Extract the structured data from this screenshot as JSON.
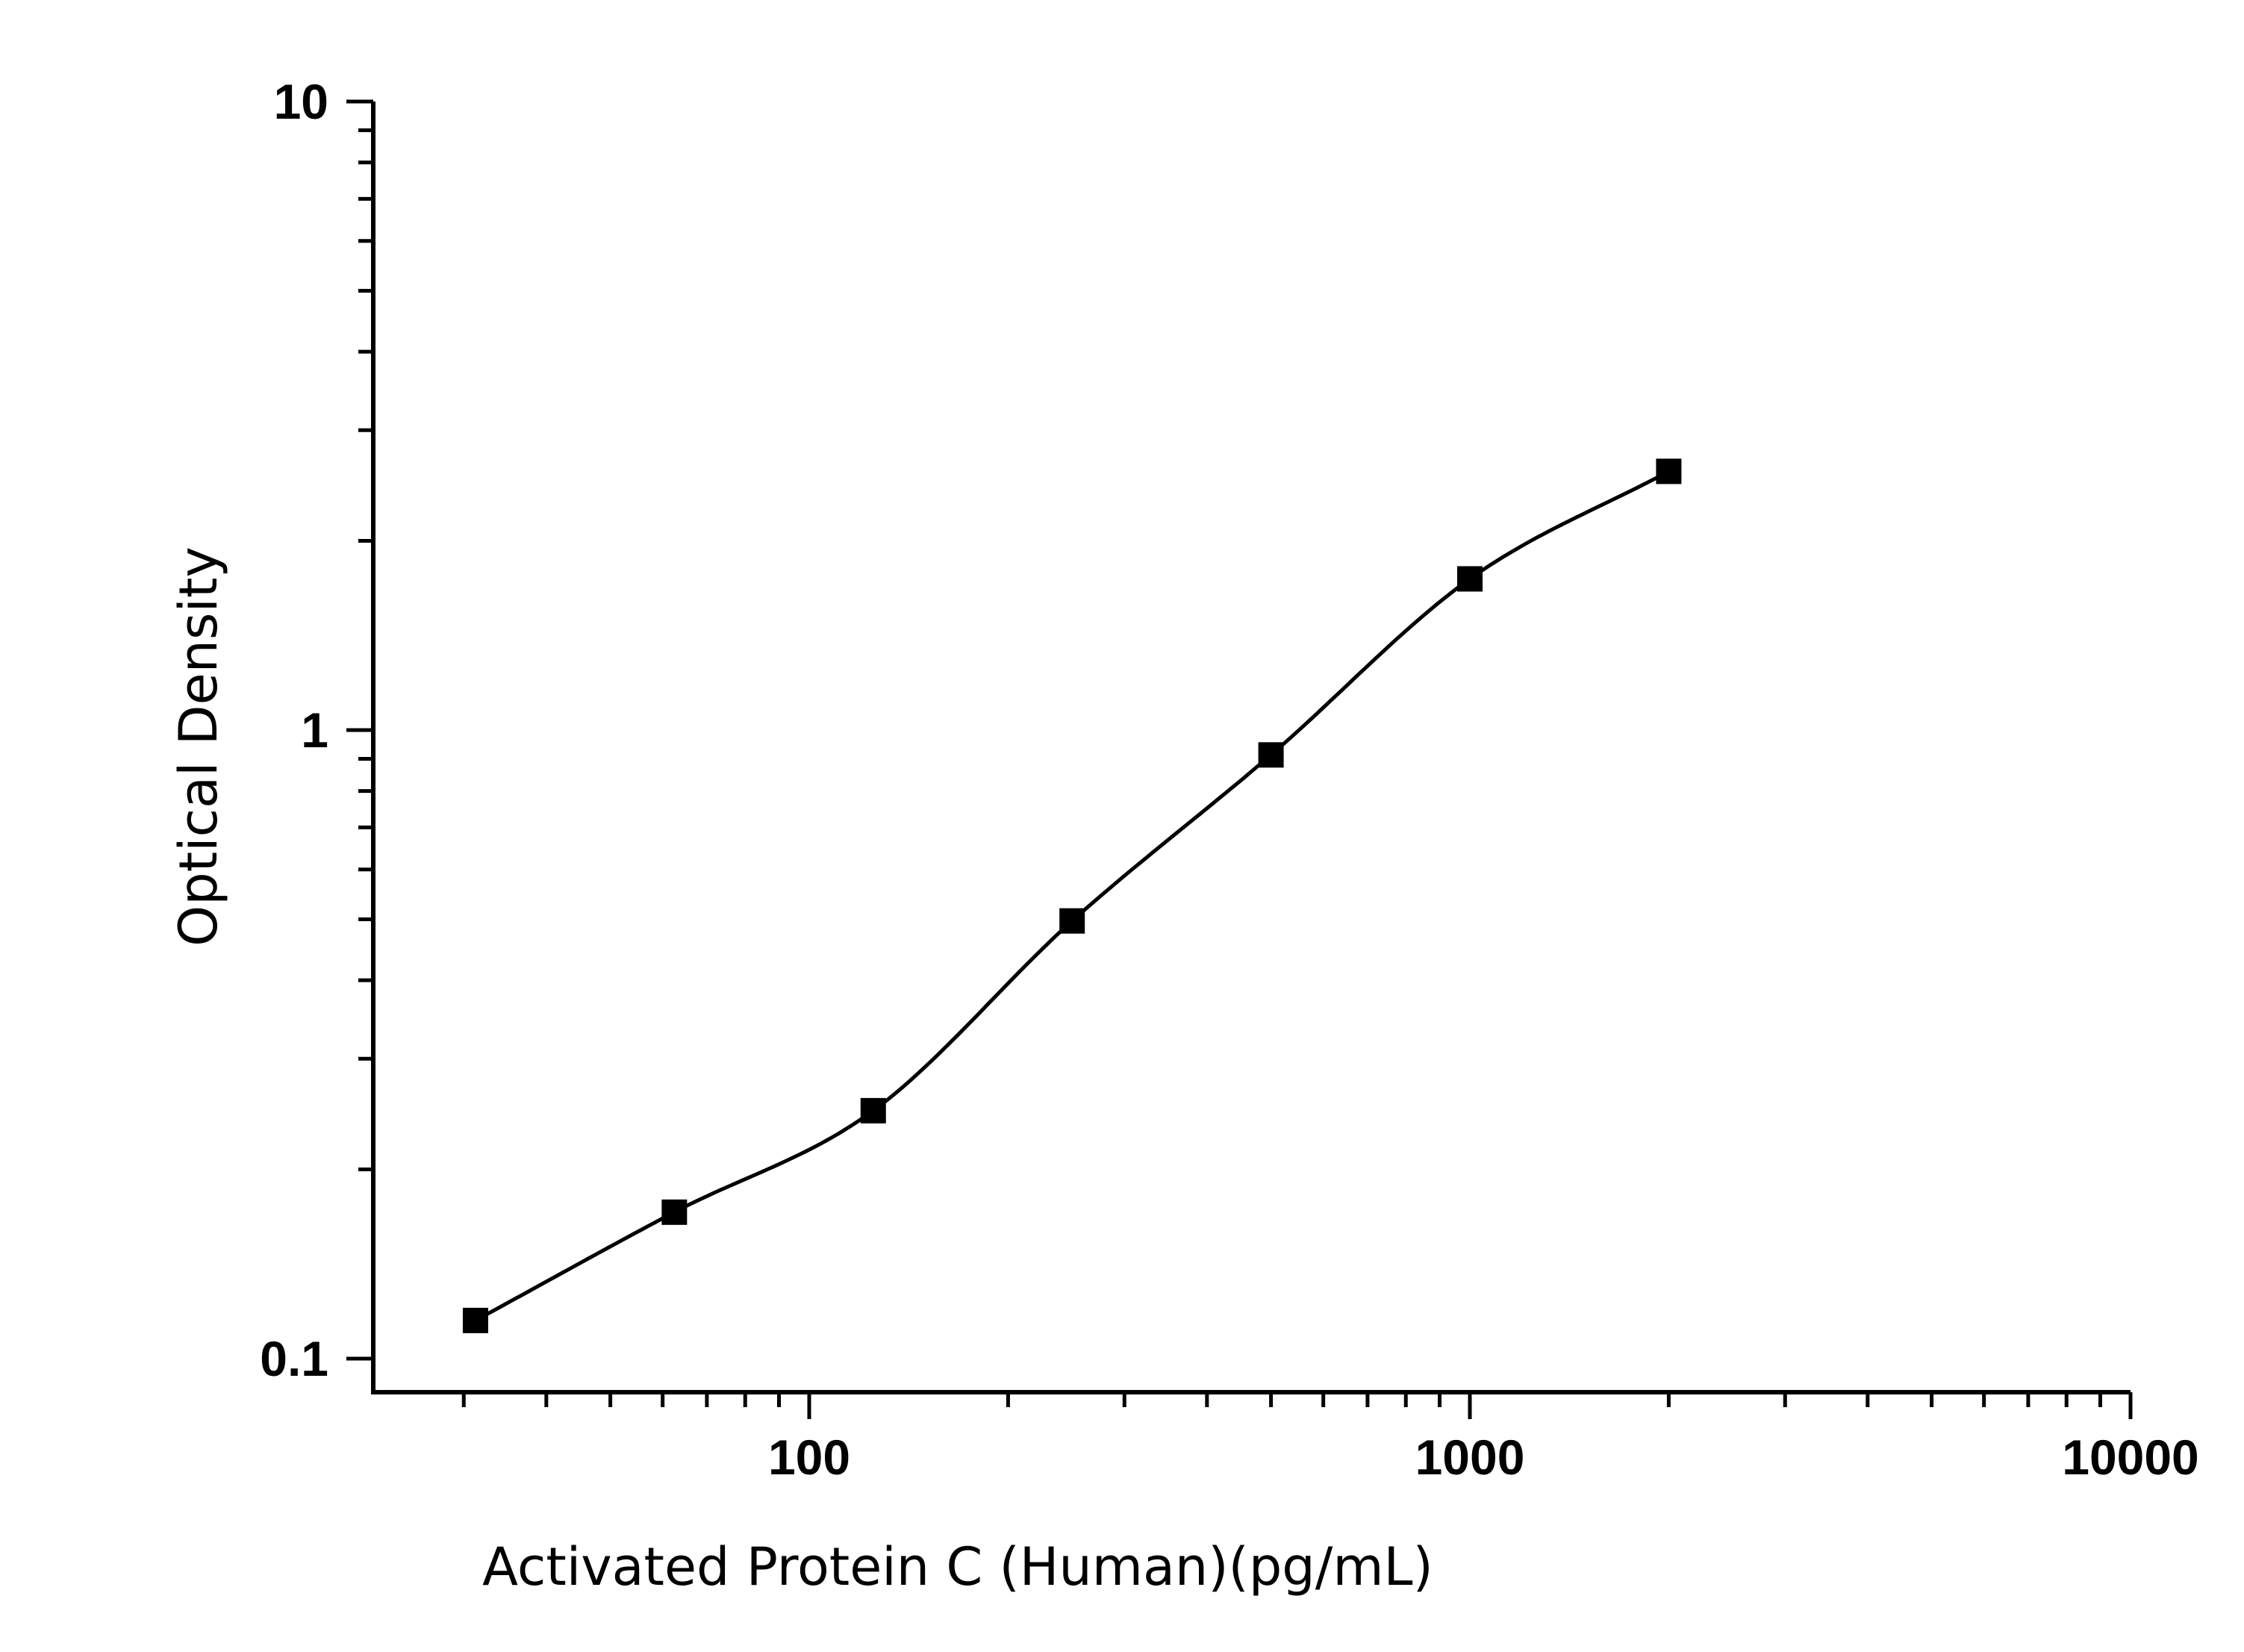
{
  "chart_data": {
    "type": "scatter",
    "xlabel": "Activated Protein C (Human)(pg/mL)",
    "ylabel": "Optical Density",
    "x_scale": "log",
    "y_scale": "log",
    "xlim": [
      20,
      10000
    ],
    "ylim": [
      0.09,
      10
    ],
    "x_ticks": [
      {
        "value": 100,
        "label": "100"
      },
      {
        "value": 1000,
        "label": "1000"
      },
      {
        "value": 10000,
        "label": "10000"
      }
    ],
    "y_ticks": [
      {
        "value": 0.1,
        "label": "0.1"
      },
      {
        "value": 1,
        "label": "1"
      },
      {
        "value": 10,
        "label": "10"
      }
    ],
    "grid": false,
    "marker": "square",
    "fit_curve": "four-parameter logistic",
    "points": [
      {
        "x": 31.25,
        "y": 0.115
      },
      {
        "x": 62.5,
        "y": 0.171
      },
      {
        "x": 125,
        "y": 0.248
      },
      {
        "x": 250,
        "y": 0.497
      },
      {
        "x": 500,
        "y": 0.913
      },
      {
        "x": 1000,
        "y": 1.74
      },
      {
        "x": 2000,
        "y": 2.58
      }
    ],
    "colors": {
      "marker": "#000000",
      "curve": "#000000",
      "axes": "#000000"
    }
  }
}
